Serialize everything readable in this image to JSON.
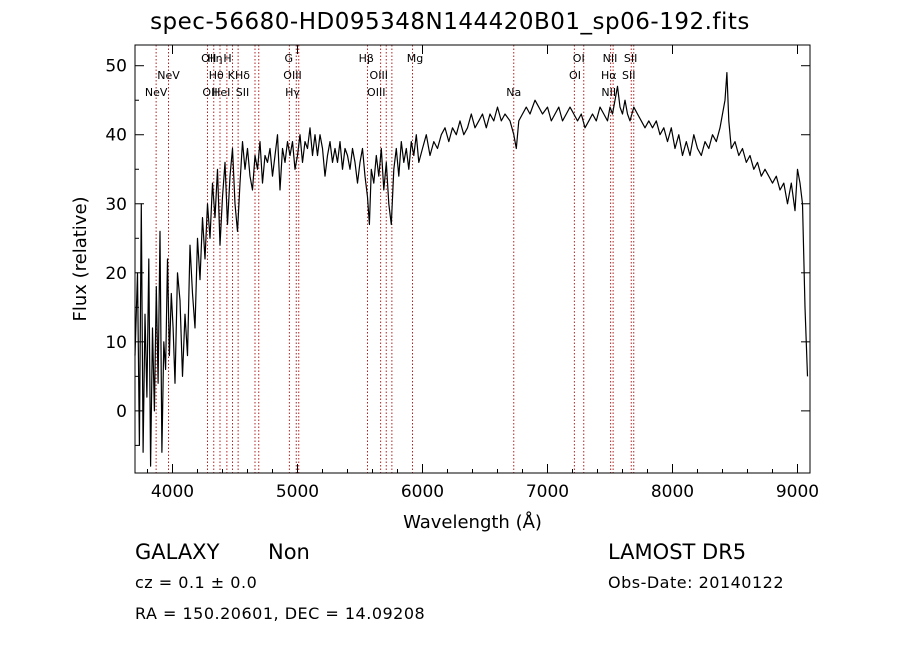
{
  "title": "spec-56680-HD095348N144420B01_sp06-192.fits",
  "info": {
    "class": "GALAXY",
    "subclass": "Non",
    "survey": "LAMOST DR5",
    "cz": "cz = 0.1 ± 0.0",
    "obs_date": "Obs-Date: 20140122",
    "coords": "RA = 150.20601, DEC =  14.09208"
  },
  "chart_data": {
    "type": "line",
    "title": "spec-56680-HD095348N144420B01_sp06-192.fits",
    "xlabel": "Wavelength (Å)",
    "ylabel": "Flux (relative)",
    "xlim": [
      3700,
      9100
    ],
    "ylim": [
      -9,
      53
    ],
    "xticks": [
      4000,
      5000,
      6000,
      7000,
      8000,
      9000
    ],
    "yticks": [
      0,
      10,
      20,
      30,
      40,
      50
    ],
    "line_color": "#000000",
    "marker_color": "#b22222",
    "grid": false,
    "series": [
      {
        "points": [
          [
            3700,
            8
          ],
          [
            3720,
            20
          ],
          [
            3735,
            -5
          ],
          [
            3750,
            30
          ],
          [
            3765,
            -6
          ],
          [
            3780,
            14
          ],
          [
            3795,
            2
          ],
          [
            3810,
            22
          ],
          [
            3825,
            -8
          ],
          [
            3840,
            12
          ],
          [
            3855,
            0
          ],
          [
            3870,
            18
          ],
          [
            3885,
            4
          ],
          [
            3900,
            26
          ],
          [
            3915,
            -6
          ],
          [
            3930,
            10
          ],
          [
            3945,
            6
          ],
          [
            3960,
            22
          ],
          [
            3975,
            8
          ],
          [
            3990,
            17
          ],
          [
            4005,
            12
          ],
          [
            4020,
            4
          ],
          [
            4040,
            20
          ],
          [
            4060,
            16
          ],
          [
            4080,
            5
          ],
          [
            4100,
            14
          ],
          [
            4120,
            8
          ],
          [
            4140,
            24
          ],
          [
            4160,
            17
          ],
          [
            4180,
            12
          ],
          [
            4200,
            25
          ],
          [
            4220,
            19
          ],
          [
            4240,
            28
          ],
          [
            4260,
            22
          ],
          [
            4280,
            30
          ],
          [
            4300,
            25
          ],
          [
            4320,
            33
          ],
          [
            4340,
            28
          ],
          [
            4360,
            35
          ],
          [
            4380,
            24
          ],
          [
            4400,
            31
          ],
          [
            4420,
            36
          ],
          [
            4440,
            27
          ],
          [
            4460,
            34
          ],
          [
            4480,
            38
          ],
          [
            4500,
            30
          ],
          [
            4520,
            26
          ],
          [
            4540,
            33
          ],
          [
            4560,
            39
          ],
          [
            4580,
            35
          ],
          [
            4600,
            38
          ],
          [
            4620,
            34
          ],
          [
            4640,
            32
          ],
          [
            4660,
            37
          ],
          [
            4680,
            35
          ],
          [
            4700,
            39
          ],
          [
            4720,
            33
          ],
          [
            4740,
            37
          ],
          [
            4760,
            36
          ],
          [
            4780,
            38
          ],
          [
            4800,
            34
          ],
          [
            4820,
            37
          ],
          [
            4840,
            40
          ],
          [
            4860,
            32
          ],
          [
            4880,
            38
          ],
          [
            4900,
            36
          ],
          [
            4920,
            39
          ],
          [
            4940,
            37
          ],
          [
            4960,
            39
          ],
          [
            4980,
            35
          ],
          [
            5000,
            37
          ],
          [
            5020,
            40
          ],
          [
            5040,
            36
          ],
          [
            5060,
            39
          ],
          [
            5080,
            38
          ],
          [
            5100,
            41
          ],
          [
            5120,
            37
          ],
          [
            5140,
            40
          ],
          [
            5160,
            37
          ],
          [
            5180,
            40
          ],
          [
            5200,
            38
          ],
          [
            5220,
            34
          ],
          [
            5240,
            37
          ],
          [
            5260,
            39
          ],
          [
            5280,
            36
          ],
          [
            5300,
            38
          ],
          [
            5320,
            36
          ],
          [
            5340,
            39
          ],
          [
            5360,
            35
          ],
          [
            5380,
            38
          ],
          [
            5400,
            37
          ],
          [
            5420,
            35
          ],
          [
            5440,
            38
          ],
          [
            5460,
            36
          ],
          [
            5480,
            33
          ],
          [
            5500,
            36
          ],
          [
            5520,
            38
          ],
          [
            5540,
            34
          ],
          [
            5560,
            31
          ],
          [
            5575,
            27
          ],
          [
            5590,
            35
          ],
          [
            5610,
            33
          ],
          [
            5630,
            37
          ],
          [
            5650,
            34
          ],
          [
            5670,
            38
          ],
          [
            5690,
            32
          ],
          [
            5710,
            36
          ],
          [
            5730,
            30
          ],
          [
            5750,
            27
          ],
          [
            5770,
            35
          ],
          [
            5790,
            38
          ],
          [
            5810,
            34
          ],
          [
            5830,
            39
          ],
          [
            5850,
            36
          ],
          [
            5870,
            38
          ],
          [
            5890,
            35
          ],
          [
            5910,
            39
          ],
          [
            5930,
            37
          ],
          [
            5950,
            40
          ],
          [
            5970,
            36
          ],
          [
            6000,
            38
          ],
          [
            6030,
            40
          ],
          [
            6060,
            37
          ],
          [
            6090,
            39
          ],
          [
            6120,
            38
          ],
          [
            6150,
            40
          ],
          [
            6180,
            41
          ],
          [
            6210,
            39
          ],
          [
            6240,
            41
          ],
          [
            6270,
            40
          ],
          [
            6300,
            42
          ],
          [
            6330,
            40
          ],
          [
            6360,
            41
          ],
          [
            6390,
            43
          ],
          [
            6420,
            41
          ],
          [
            6450,
            42
          ],
          [
            6480,
            43
          ],
          [
            6510,
            41
          ],
          [
            6540,
            43
          ],
          [
            6570,
            42
          ],
          [
            6600,
            44
          ],
          [
            6630,
            42
          ],
          [
            6660,
            43
          ],
          [
            6700,
            42
          ],
          [
            6730,
            40
          ],
          [
            6750,
            38
          ],
          [
            6770,
            42
          ],
          [
            6800,
            43
          ],
          [
            6830,
            44
          ],
          [
            6860,
            43
          ],
          [
            6900,
            45
          ],
          [
            6930,
            44
          ],
          [
            6960,
            43
          ],
          [
            7000,
            44
          ],
          [
            7030,
            42
          ],
          [
            7060,
            43
          ],
          [
            7090,
            44
          ],
          [
            7120,
            42
          ],
          [
            7150,
            43
          ],
          [
            7180,
            44
          ],
          [
            7210,
            43
          ],
          [
            7240,
            42
          ],
          [
            7270,
            43
          ],
          [
            7300,
            41
          ],
          [
            7330,
            42
          ],
          [
            7360,
            43
          ],
          [
            7390,
            42
          ],
          [
            7420,
            44
          ],
          [
            7450,
            43
          ],
          [
            7480,
            42
          ],
          [
            7500,
            44
          ],
          [
            7520,
            43
          ],
          [
            7540,
            45
          ],
          [
            7560,
            47
          ],
          [
            7580,
            44
          ],
          [
            7600,
            43
          ],
          [
            7620,
            45
          ],
          [
            7640,
            43
          ],
          [
            7660,
            42
          ],
          [
            7690,
            44
          ],
          [
            7720,
            43
          ],
          [
            7750,
            42
          ],
          [
            7780,
            41
          ],
          [
            7810,
            42
          ],
          [
            7840,
            41
          ],
          [
            7870,
            42
          ],
          [
            7900,
            40
          ],
          [
            7930,
            41
          ],
          [
            7960,
            39
          ],
          [
            7990,
            41
          ],
          [
            8020,
            38
          ],
          [
            8050,
            40
          ],
          [
            8080,
            37
          ],
          [
            8110,
            39
          ],
          [
            8140,
            37
          ],
          [
            8170,
            40
          ],
          [
            8200,
            38
          ],
          [
            8230,
            37
          ],
          [
            8260,
            39
          ],
          [
            8290,
            38
          ],
          [
            8320,
            40
          ],
          [
            8350,
            39
          ],
          [
            8380,
            41
          ],
          [
            8400,
            43
          ],
          [
            8420,
            45
          ],
          [
            8435,
            49
          ],
          [
            8450,
            42
          ],
          [
            8470,
            38
          ],
          [
            8500,
            39
          ],
          [
            8530,
            37
          ],
          [
            8560,
            38
          ],
          [
            8590,
            36
          ],
          [
            8620,
            37
          ],
          [
            8650,
            35
          ],
          [
            8680,
            36
          ],
          [
            8710,
            34
          ],
          [
            8740,
            35
          ],
          [
            8770,
            34
          ],
          [
            8800,
            33
          ],
          [
            8830,
            34
          ],
          [
            8860,
            32
          ],
          [
            8890,
            33
          ],
          [
            8920,
            30
          ],
          [
            8950,
            33
          ],
          [
            8980,
            29
          ],
          [
            9000,
            35
          ],
          [
            9020,
            33
          ],
          [
            9040,
            30
          ],
          [
            9060,
            15
          ],
          [
            9080,
            5
          ]
        ]
      }
    ],
    "line_markers": [
      {
        "x": 3869,
        "label": "NeV",
        "row": 2
      },
      {
        "x": 3968,
        "label": "NeV",
        "row": 1
      },
      {
        "x": 4290,
        "label": "OII",
        "row": 0
      },
      {
        "x": 4300,
        "label": "OII",
        "row": 2
      },
      {
        "x": 4340,
        "label": "Hη",
        "row": 0
      },
      {
        "x": 4350,
        "label": "Hθ",
        "row": 1
      },
      {
        "x": 4390,
        "label": "HeI",
        "row": 2
      },
      {
        "x": 4440,
        "label": "H",
        "row": 0
      },
      {
        "x": 4470,
        "label": "K",
        "row": 1
      },
      {
        "x": 4560,
        "label": "Hδ",
        "row": 1
      },
      {
        "x": 4560,
        "label": "SII",
        "row": 2
      },
      {
        "x": 4930,
        "label": "G",
        "row": 0
      },
      {
        "x": 4960,
        "label": "OIII",
        "row": 1
      },
      {
        "x": 4960,
        "label": "Hγ",
        "row": 2
      },
      {
        "x": 5550,
        "label": "Hβ",
        "row": 0
      },
      {
        "x": 5650,
        "label": "OIII",
        "row": 1
      },
      {
        "x": 5630,
        "label": "OIII",
        "row": 2
      },
      {
        "x": 5940,
        "label": "Mg",
        "row": 0
      },
      {
        "x": 6730,
        "label": "Na",
        "row": 2
      },
      {
        "x": 7250,
        "label": "OI",
        "row": 0
      },
      {
        "x": 7220,
        "label": "OI",
        "row": 1
      },
      {
        "x": 7500,
        "label": "NII",
        "row": 0
      },
      {
        "x": 7490,
        "label": "Hα",
        "row": 1
      },
      {
        "x": 7490,
        "label": "NII",
        "row": 2
      },
      {
        "x": 7665,
        "label": "SII",
        "row": 0
      },
      {
        "x": 7650,
        "label": "SII",
        "row": 1
      },
      {
        "x": 7680,
        "label": "",
        "row": 2
      }
    ],
    "marker_lines_x": [
      3869,
      3968,
      4280,
      4330,
      4380,
      4435,
      4480,
      4525,
      4660,
      4690,
      4935,
      4990,
      5010,
      5560,
      5665,
      5710,
      5755,
      5920,
      6730,
      7215,
      7290,
      7505,
      7525,
      7670,
      7690
    ]
  }
}
